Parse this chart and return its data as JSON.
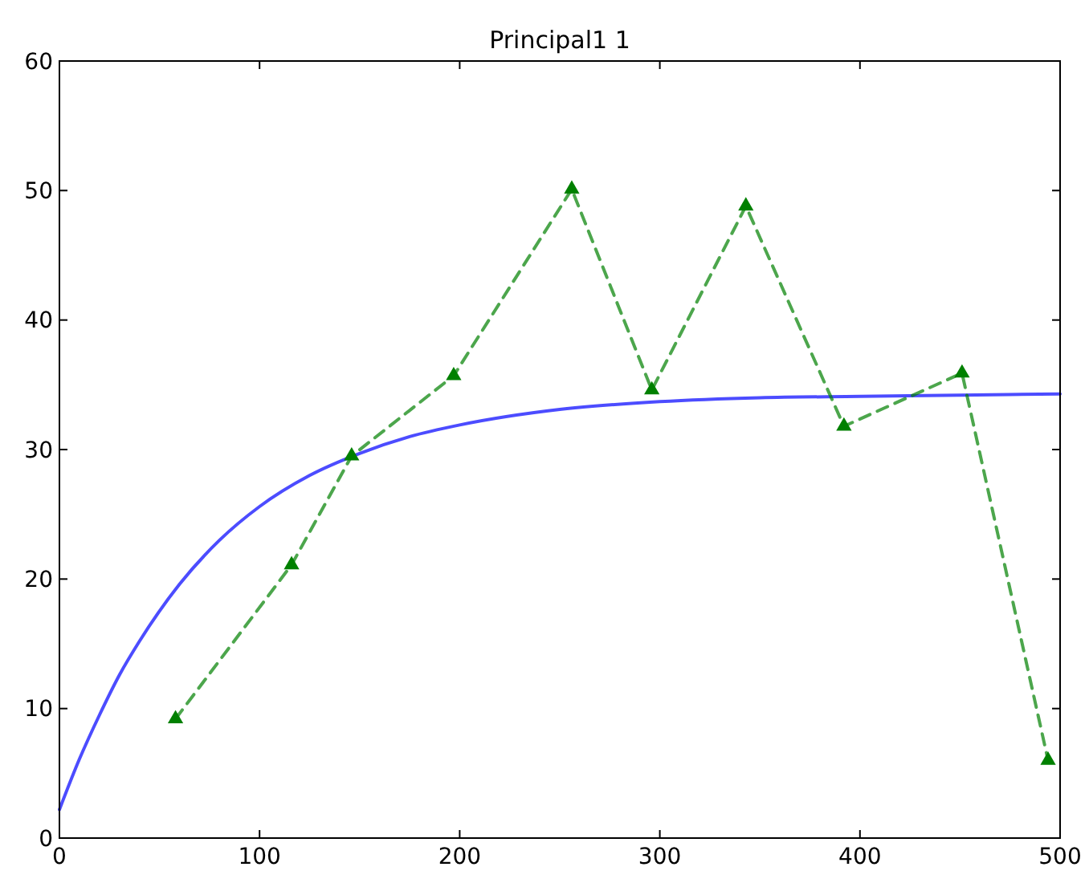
{
  "chart_data": {
    "type": "line",
    "title": "Principal1 1",
    "xlim": [
      0,
      500
    ],
    "ylim": [
      0,
      60
    ],
    "xticks": [
      0,
      100,
      200,
      300,
      400,
      500
    ],
    "yticks": [
      0,
      10,
      20,
      30,
      40,
      50,
      60
    ],
    "grid": false,
    "series": [
      {
        "color": "#0000ff",
        "marker": "none",
        "line_style": "solid",
        "x": [
          0,
          10,
          20,
          30,
          40,
          60,
          80,
          100,
          125,
          150,
          175,
          200,
          250,
          300,
          350,
          400,
          450,
          500
        ],
        "values": [
          2.2,
          6.1,
          9.5,
          12.6,
          15.2,
          19.6,
          23.0,
          25.6,
          28.0,
          29.7,
          31.0,
          31.9,
          33.1,
          33.7,
          34.0,
          34.1,
          34.2,
          34.3
        ]
      },
      {
        "color": "#008000",
        "marker": "triangle",
        "line_style": "dashed",
        "x": [
          58,
          116,
          146,
          197,
          256,
          296,
          343,
          392,
          451,
          494
        ],
        "values": [
          9.2,
          21.1,
          29.5,
          35.7,
          50.1,
          34.6,
          48.8,
          31.8,
          35.9,
          6.0
        ]
      }
    ]
  }
}
